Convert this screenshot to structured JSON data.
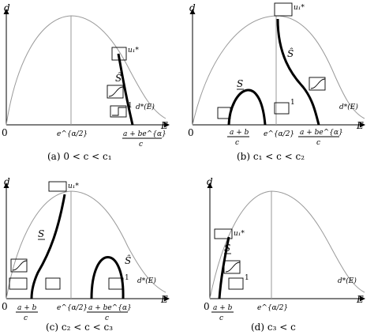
{
  "panels": [
    {
      "caption": "(a) 0 < c < c₁",
      "axis_y": "d",
      "axis_x": "E",
      "origin": "0",
      "peak_label": "e^{α/2}",
      "right_label": "d*(E)",
      "u_label": "u₁*",
      "branch_label": "Ŝ",
      "mark_one": "1",
      "tick_label": "a + be^{α}",
      "tick_den": "c"
    },
    {
      "caption": "(b) c₁ < c < c₂",
      "axis_y": "d",
      "axis_x": "E",
      "origin": "0",
      "peak_label": "e^{α/2}",
      "right_label": "d*(E)",
      "u_label": "u₁*",
      "branch_hat": "Ŝ",
      "branch_under": "S",
      "mark_one": "1",
      "tick1_num": "a + b",
      "tick1_den": "c",
      "tick2_num": "a + be^{α}",
      "tick2_den": "c"
    },
    {
      "caption": "(c) c₂ < c < c₃",
      "axis_y": "d",
      "axis_x": "E",
      "origin": "0",
      "peak_label": "e^{α/2}",
      "right_label": "d*(E)",
      "u_label": "u₁*",
      "branch_hat": "Ŝ",
      "branch_under": "S",
      "mark_one": "1",
      "tick1_num": "a + b",
      "tick1_den": "c",
      "tick2_num": "a + be^{α}",
      "tick2_den": "c"
    },
    {
      "caption": "(d) c₃ < c",
      "axis_y": "d",
      "axis_x": "E",
      "origin": "0",
      "peak_label": "e^{α/2}",
      "right_label": "d*(E)",
      "u_label": "u₁*",
      "branch_under": "S",
      "mark_one": "1",
      "tick1_num": "a + b",
      "tick1_den": "c"
    }
  ]
}
